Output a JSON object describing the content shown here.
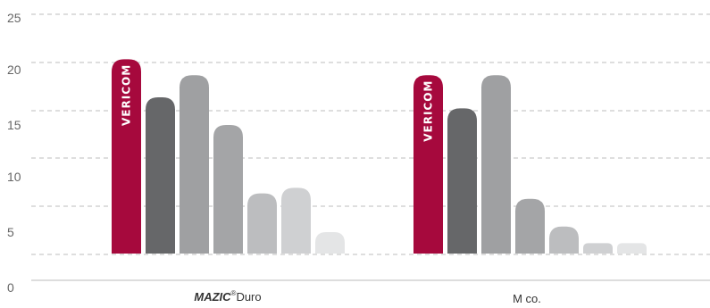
{
  "chart_data": {
    "type": "bar",
    "y_ticks": [
      "0",
      "5",
      "10",
      "15",
      "20",
      "25"
    ],
    "ylim": [
      0,
      25
    ],
    "grid": true,
    "categories": [
      {
        "label_brand": "MAZIC",
        "label_sup": "®",
        "label_rest": "Duro",
        "values": [
          21,
          17.5,
          19.5,
          15,
          8.5,
          9,
          5
        ],
        "bar_texts": [
          "VERICOM",
          "",
          "",
          "",
          "",
          "",
          ""
        ]
      },
      {
        "label": "M co.",
        "values": [
          19.5,
          16.5,
          19.5,
          8,
          5.5,
          4,
          4
        ],
        "bar_texts": [
          "VERICOM",
          "",
          "",
          "",
          "",
          "",
          ""
        ]
      }
    ],
    "colors": [
      "#a6093d",
      "#666769",
      "#9fa0a2",
      "#a4a5a7",
      "#bcbdbf",
      "#cfd0d2",
      "#e4e5e6"
    ]
  }
}
